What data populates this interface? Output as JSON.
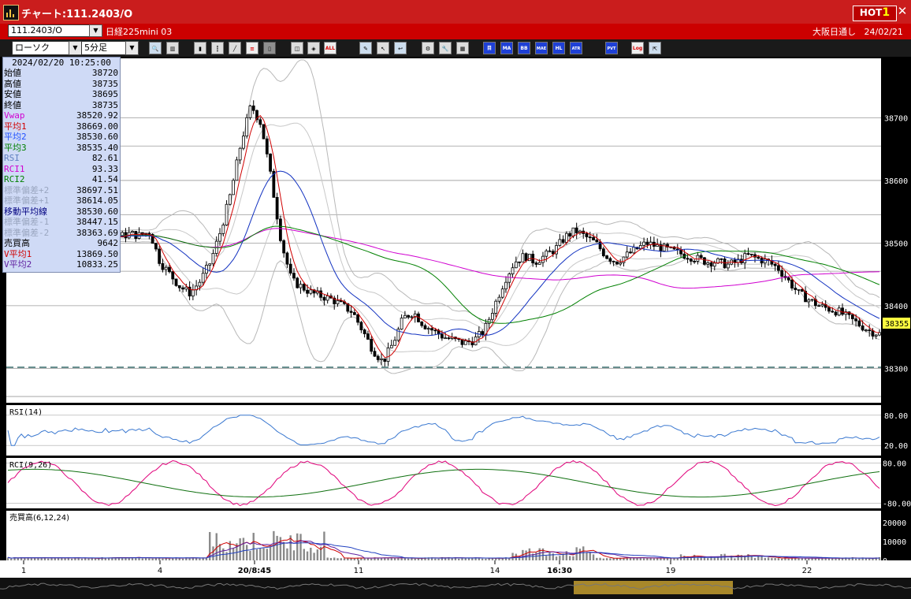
{
  "window": {
    "title": "チャート:111.2403/O",
    "hot_label": "HOT",
    "hot_num": "1",
    "close_glyph": "✕"
  },
  "symbol": {
    "code": "111.2403/O",
    "name": "日経225mini 03",
    "exchange": "大阪日通し",
    "date": "24/02/21"
  },
  "toolbar": {
    "chart_type": "ローソク",
    "timeframe": "5分足",
    "indicator_buttons": [
      "MA",
      "BB",
      "MAE",
      "HL",
      "ATR",
      "PVT",
      "Log"
    ]
  },
  "info": {
    "datetime": "2024/02/20  10:25:00",
    "rows": [
      {
        "label": "始値",
        "value": "38720",
        "color": "#000000"
      },
      {
        "label": "高値",
        "value": "38735",
        "color": "#000000"
      },
      {
        "label": "安値",
        "value": "38695",
        "color": "#000000"
      },
      {
        "label": "終値",
        "value": "38735",
        "color": "#000000"
      },
      {
        "label": "Vwap",
        "value": "38520.92",
        "color": "#d000d0"
      },
      {
        "label": "平均1",
        "value": "38669.00",
        "color": "#d00000"
      },
      {
        "label": "平均2",
        "value": "38530.60",
        "color": "#2050ff"
      },
      {
        "label": "平均3",
        "value": "38535.40",
        "color": "#008000"
      },
      {
        "label": "RSI",
        "value": "82.61",
        "color": "#6080c0"
      },
      {
        "label": "RCI1",
        "value": "93.33",
        "color": "#d000d0"
      },
      {
        "label": "RCI2",
        "value": "41.54",
        "color": "#008000"
      },
      {
        "label": "標準偏差+2",
        "value": "38697.51",
        "color": "#9aa6c0"
      },
      {
        "label": "標準偏差+1",
        "value": "38614.05",
        "color": "#9aa6c0"
      },
      {
        "label": "移動平均線",
        "value": "38530.60",
        "color": "#000080"
      },
      {
        "label": "標準偏差-1",
        "value": "38447.15",
        "color": "#9aa6c0"
      },
      {
        "label": "標準偏差-2",
        "value": "38363.69",
        "color": "#9aa6c0"
      },
      {
        "label": "売買高",
        "value": "9642",
        "color": "#000000"
      },
      {
        "label": "V平均1",
        "value": "13869.50",
        "color": "#d00000"
      },
      {
        "label": "V平均2",
        "value": "10833.25",
        "color": "#6020a0"
      }
    ]
  },
  "panels": {
    "rsi_title": "RSI(14)",
    "rci_title": "RCI(9,26)",
    "vol_title": "売買高(6,12,24)"
  },
  "chart_data": {
    "type": "candlestick",
    "price_axis_ticks": [
      38700,
      38600,
      38500,
      38400,
      38300
    ],
    "price_ylim": [
      38245,
      38795
    ],
    "current_price": "38355",
    "dashed_support": 38290,
    "x_tick_labels": [
      "1",
      "4",
      "20/8:45",
      "11",
      "14",
      "16:30",
      "19",
      "22"
    ],
    "rsi_ticks": [
      "80.00",
      "20.00"
    ],
    "rci_ticks": [
      "80.00",
      "-80.00"
    ],
    "vol_ticks": [
      "20000",
      "10000",
      "0"
    ],
    "close_path": [
      38520,
      38515,
      38512,
      38515,
      38512,
      38510,
      38512,
      38515,
      38510,
      38508,
      38512,
      38510,
      38515,
      38512,
      38518,
      38470,
      38450,
      38430,
      38420,
      38440,
      38470,
      38520,
      38580,
      38660,
      38720,
      38690,
      38600,
      38500,
      38440,
      38430,
      38420,
      38415,
      38410,
      38400,
      38390,
      38360,
      38330,
      38310,
      38340,
      38380,
      38390,
      38370,
      38360,
      38350,
      38345,
      38340,
      38345,
      38360,
      38400,
      38440,
      38470,
      38480,
      38470,
      38480,
      38490,
      38510,
      38520,
      38510,
      38500,
      38480,
      38470,
      38480,
      38490,
      38500,
      38495,
      38490,
      38485,
      38480,
      38475,
      38470,
      38470,
      38465,
      38470,
      38480,
      38475,
      38470,
      38460,
      38440,
      38420,
      38410,
      38400,
      38395,
      38390,
      38380,
      38370,
      38360,
      38355
    ]
  }
}
